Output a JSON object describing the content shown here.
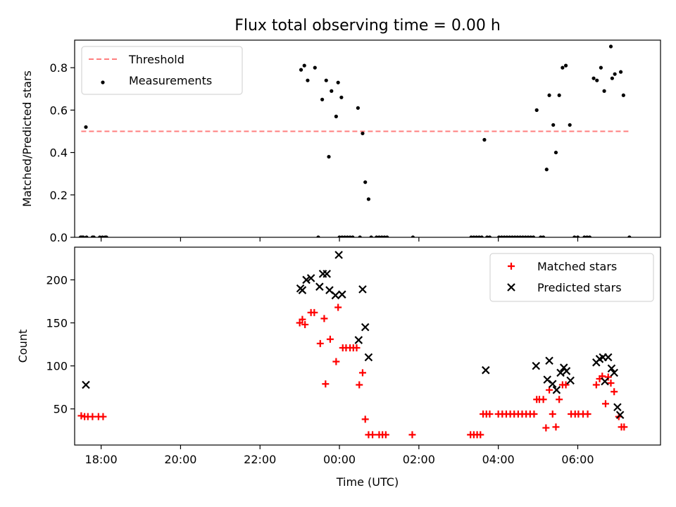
{
  "title": "Flux total observing time = 0.00 h",
  "chart_data": [
    {
      "type": "scatter",
      "panel": "top",
      "ylabel": "Matched/Predicted stars",
      "xlabel": "",
      "xlim": [
        "17:20",
        "08:05"
      ],
      "ylim": [
        0,
        0.93
      ],
      "yticks": [
        0.0,
        0.2,
        0.4,
        0.6,
        0.8
      ],
      "yticklabels": [
        "0.0",
        "0.2",
        "0.4",
        "0.6",
        "0.8"
      ],
      "xtick_positions": [
        "18:00",
        "20:00",
        "22:00",
        "00:00",
        "02:00",
        "04:00",
        "06:00"
      ],
      "legend": {
        "placement": "upper left",
        "entries": [
          "Threshold",
          "Measurements"
        ]
      },
      "series": [
        {
          "name": "Threshold",
          "kind": "dashed-line",
          "color": "#ff7f7f",
          "x": [
            "17:30",
            "07:20"
          ],
          "y": [
            0.5,
            0.5
          ]
        },
        {
          "name": "Measurements",
          "kind": "points",
          "color": "#000000",
          "points": [
            [
              "17:29",
              0.0
            ],
            [
              "17:31",
              0.0
            ],
            [
              "17:33",
              0.0
            ],
            [
              "17:37",
              0.52
            ],
            [
              "17:38",
              0.0
            ],
            [
              "17:47",
              0.0
            ],
            [
              "17:49",
              0.0
            ],
            [
              "17:58",
              0.0
            ],
            [
              "18:02",
              0.0
            ],
            [
              "18:06",
              0.0
            ],
            [
              "18:08",
              0.0
            ],
            [
              "23:02",
              0.79
            ],
            [
              "23:07",
              0.81
            ],
            [
              "23:12",
              0.74
            ],
            [
              "23:23",
              0.8
            ],
            [
              "23:28",
              0.0
            ],
            [
              "23:34",
              0.65
            ],
            [
              "23:40",
              0.74
            ],
            [
              "23:44",
              0.38
            ],
            [
              "23:48",
              0.69
            ],
            [
              "23:55",
              0.57
            ],
            [
              "23:58",
              0.73
            ],
            [
              "00:03",
              0.66
            ],
            [
              "00:00",
              0.0
            ],
            [
              "00:04",
              0.0
            ],
            [
              "00:08",
              0.0
            ],
            [
              "00:12",
              0.0
            ],
            [
              "00:16",
              0.0
            ],
            [
              "00:20",
              0.0
            ],
            [
              "00:28",
              0.61
            ],
            [
              "00:31",
              0.0
            ],
            [
              "00:35",
              0.49
            ],
            [
              "00:39",
              0.26
            ],
            [
              "00:44",
              0.18
            ],
            [
              "00:48",
              0.0
            ],
            [
              "00:56",
              0.0
            ],
            [
              "01:00",
              0.0
            ],
            [
              "01:04",
              0.0
            ],
            [
              "01:08",
              0.0
            ],
            [
              "01:12",
              0.0
            ],
            [
              "01:51",
              0.0
            ],
            [
              "03:19",
              0.0
            ],
            [
              "03:23",
              0.0
            ],
            [
              "03:27",
              0.0
            ],
            [
              "03:31",
              0.0
            ],
            [
              "03:35",
              0.0
            ],
            [
              "03:39",
              0.46
            ],
            [
              "03:43",
              0.0
            ],
            [
              "03:47",
              0.0
            ],
            [
              "04:01",
              0.0
            ],
            [
              "04:05",
              0.0
            ],
            [
              "04:09",
              0.0
            ],
            [
              "04:13",
              0.0
            ],
            [
              "04:17",
              0.0
            ],
            [
              "04:21",
              0.0
            ],
            [
              "04:25",
              0.0
            ],
            [
              "04:29",
              0.0
            ],
            [
              "04:33",
              0.0
            ],
            [
              "04:37",
              0.0
            ],
            [
              "04:41",
              0.0
            ],
            [
              "04:45",
              0.0
            ],
            [
              "04:49",
              0.0
            ],
            [
              "04:53",
              0.0
            ],
            [
              "04:58",
              0.6
            ],
            [
              "05:04",
              0.0
            ],
            [
              "05:08",
              0.0
            ],
            [
              "05:13",
              0.32
            ],
            [
              "05:17",
              0.67
            ],
            [
              "05:23",
              0.53
            ],
            [
              "05:27",
              0.4
            ],
            [
              "05:32",
              0.67
            ],
            [
              "05:37",
              0.8
            ],
            [
              "05:42",
              0.81
            ],
            [
              "05:48",
              0.53
            ],
            [
              "05:55",
              0.0
            ],
            [
              "06:00",
              0.0
            ],
            [
              "06:10",
              0.0
            ],
            [
              "06:14",
              0.0
            ],
            [
              "06:18",
              0.0
            ],
            [
              "06:24",
              0.75
            ],
            [
              "06:29",
              0.74
            ],
            [
              "06:35",
              0.8
            ],
            [
              "06:40",
              0.69
            ],
            [
              "06:50",
              0.9
            ],
            [
              "06:52",
              0.75
            ],
            [
              "06:56",
              0.77
            ],
            [
              "07:05",
              0.78
            ],
            [
              "07:09",
              0.67
            ],
            [
              "07:18",
              0.0
            ]
          ]
        }
      ]
    },
    {
      "type": "scatter",
      "panel": "bottom",
      "ylabel": "Count",
      "xlabel": "Time (UTC)",
      "xlim": [
        "17:20",
        "08:05"
      ],
      "ylim": [
        8,
        238
      ],
      "yticks": [
        50,
        100,
        150,
        200
      ],
      "yticklabels": [
        "50",
        "100",
        "150",
        "200"
      ],
      "xticks": [
        "18:00",
        "20:00",
        "22:00",
        "00:00",
        "02:00",
        "04:00",
        "06:00"
      ],
      "xticklabels": [
        "18:00",
        "20:00",
        "22:00",
        "00:00",
        "02:00",
        "04:00",
        "06:00"
      ],
      "legend": {
        "placement": "upper right",
        "entries": [
          "Matched stars",
          "Predicted stars"
        ]
      },
      "series": [
        {
          "name": "Matched stars",
          "marker": "plus",
          "color": "#ff0000",
          "points": [
            [
              "17:30",
              42
            ],
            [
              "17:35",
              41
            ],
            [
              "17:40",
              41
            ],
            [
              "17:47",
              41
            ],
            [
              "17:56",
              41
            ],
            [
              "18:03",
              41
            ],
            [
              "23:00",
              150
            ],
            [
              "23:04",
              154
            ],
            [
              "23:08",
              148
            ],
            [
              "23:17",
              162
            ],
            [
              "23:22",
              162
            ],
            [
              "23:31",
              126
            ],
            [
              "23:37",
              155
            ],
            [
              "23:39",
              79
            ],
            [
              "23:46",
              131
            ],
            [
              "23:55",
              105
            ],
            [
              "23:58",
              168
            ],
            [
              "00:05",
              121
            ],
            [
              "00:10",
              121
            ],
            [
              "00:16",
              121
            ],
            [
              "00:21",
              121
            ],
            [
              "00:26",
              121
            ],
            [
              "00:30",
              78
            ],
            [
              "00:35",
              92
            ],
            [
              "00:39",
              38
            ],
            [
              "00:44",
              20
            ],
            [
              "00:50",
              20
            ],
            [
              "01:00",
              20
            ],
            [
              "01:05",
              20
            ],
            [
              "01:10",
              20
            ],
            [
              "01:50",
              20
            ],
            [
              "03:18",
              20
            ],
            [
              "03:23",
              20
            ],
            [
              "03:28",
              20
            ],
            [
              "03:33",
              20
            ],
            [
              "03:37",
              44
            ],
            [
              "03:42",
              44
            ],
            [
              "03:47",
              44
            ],
            [
              "04:00",
              44
            ],
            [
              "04:06",
              44
            ],
            [
              "04:12",
              44
            ],
            [
              "04:18",
              44
            ],
            [
              "04:24",
              44
            ],
            [
              "04:30",
              44
            ],
            [
              "04:36",
              44
            ],
            [
              "04:42",
              44
            ],
            [
              "04:48",
              44
            ],
            [
              "04:54",
              44
            ],
            [
              "04:58",
              61
            ],
            [
              "05:02",
              61
            ],
            [
              "05:08",
              61
            ],
            [
              "05:12",
              28
            ],
            [
              "05:17",
              72
            ],
            [
              "05:22",
              44
            ],
            [
              "05:27",
              29
            ],
            [
              "05:32",
              61
            ],
            [
              "05:37",
              78
            ],
            [
              "05:42",
              78
            ],
            [
              "05:50",
              44
            ],
            [
              "05:56",
              44
            ],
            [
              "06:01",
              44
            ],
            [
              "06:08",
              44
            ],
            [
              "06:15",
              44
            ],
            [
              "06:28",
              78
            ],
            [
              "06:33",
              85
            ],
            [
              "06:37",
              88
            ],
            [
              "06:42",
              56
            ],
            [
              "06:46",
              87
            ],
            [
              "06:50",
              80
            ],
            [
              "06:55",
              70
            ],
            [
              "07:02",
              41
            ],
            [
              "07:06",
              29
            ],
            [
              "07:10",
              29
            ]
          ]
        },
        {
          "name": "Predicted stars",
          "marker": "x",
          "color": "#000000",
          "points": [
            [
              "17:37",
              78
            ],
            [
              "23:01",
              190
            ],
            [
              "23:04",
              188
            ],
            [
              "23:10",
              200
            ],
            [
              "23:17",
              202
            ],
            [
              "23:30",
              192
            ],
            [
              "23:35",
              207
            ],
            [
              "23:41",
              207
            ],
            [
              "23:45",
              188
            ],
            [
              "23:54",
              182
            ],
            [
              "23:59",
              229
            ],
            [
              "00:04",
              183
            ],
            [
              "00:29",
              130
            ],
            [
              "00:35",
              189
            ],
            [
              "00:39",
              145
            ],
            [
              "00:44",
              110
            ],
            [
              "03:41",
              95
            ],
            [
              "04:57",
              100
            ],
            [
              "05:14",
              84
            ],
            [
              "05:17",
              106
            ],
            [
              "05:22",
              79
            ],
            [
              "05:28",
              72
            ],
            [
              "05:34",
              92
            ],
            [
              "05:39",
              98
            ],
            [
              "05:43",
              94
            ],
            [
              "05:49",
              83
            ],
            [
              "06:28",
              104
            ],
            [
              "06:33",
              108
            ],
            [
              "06:38",
              110
            ],
            [
              "06:41",
              82
            ],
            [
              "06:46",
              110
            ],
            [
              "06:51",
              97
            ],
            [
              "06:55",
              92
            ],
            [
              "07:00",
              52
            ],
            [
              "07:04",
              43
            ]
          ]
        }
      ]
    }
  ]
}
